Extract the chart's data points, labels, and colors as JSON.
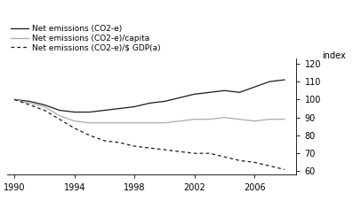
{
  "years": [
    1990,
    1991,
    1992,
    1993,
    1994,
    1995,
    1996,
    1997,
    1998,
    1999,
    2000,
    2001,
    2002,
    2003,
    2004,
    2005,
    2006,
    2007,
    2008
  ],
  "net_emissions": [
    100,
    99,
    97,
    94,
    93,
    93,
    94,
    95,
    96,
    98,
    99,
    101,
    103,
    104,
    105,
    104,
    107,
    110,
    111
  ],
  "per_capita": [
    100,
    98,
    96,
    91,
    88,
    87,
    87,
    87,
    87,
    87,
    87,
    88,
    89,
    89,
    90,
    89,
    88,
    89,
    89
  ],
  "per_gdp": [
    100,
    97,
    94,
    89,
    84,
    80,
    77,
    76,
    74,
    73,
    72,
    71,
    70,
    70,
    68,
    66,
    65,
    63,
    61
  ],
  "color_total": "#1a1a1a",
  "color_capita": "#aaaaaa",
  "color_gdp": "#1a1a1a",
  "legend_labels": [
    "Net emissions (CO2-e)",
    "Net emissions (CO2-e)/capita",
    "Net emissions (CO2-e)/$ GDP(a)"
  ],
  "ylabel": "index",
  "ylim": [
    58,
    123
  ],
  "yticks": [
    60,
    70,
    80,
    90,
    100,
    110,
    120
  ],
  "xticks": [
    1990,
    1994,
    1998,
    2002,
    2006
  ],
  "xlim": [
    1989.5,
    2008.8
  ]
}
